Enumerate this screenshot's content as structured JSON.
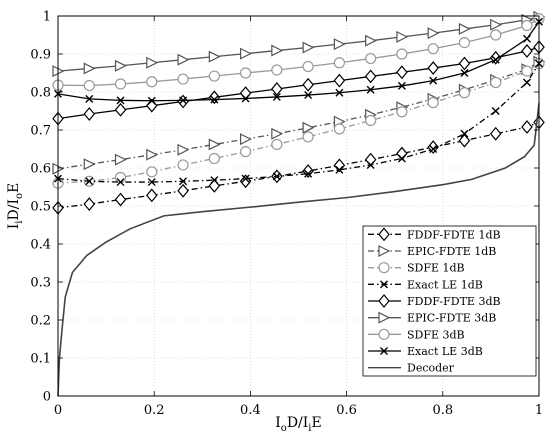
{
  "chart_data": {
    "type": "line",
    "title": "",
    "xlabel_parts": {
      "a": "I",
      "a_sub": "o",
      "b": "D/I",
      "c_sub": "i",
      "d": "E"
    },
    "ylabel_parts": {
      "a": "I",
      "a_sub": "i",
      "b": "D/I",
      "c_sub": "o",
      "d": "E"
    },
    "xlim": [
      0,
      1
    ],
    "ylim": [
      0,
      1
    ],
    "xticks": [
      "0",
      "0.2",
      "0.4",
      "0.6",
      "0.8",
      "1"
    ],
    "yticks": [
      "0",
      "0.1",
      "0.2",
      "0.3",
      "0.4",
      "0.5",
      "0.6",
      "0.7",
      "0.8",
      "0.9",
      "1"
    ],
    "grid": true,
    "legend_position": "bottom-right",
    "series": [
      {
        "name": "FDDF-FDTE 1dB",
        "color": "#000000",
        "dash": "6,3,1.5,3",
        "marker": "diamond",
        "x": [
          0,
          0.065,
          0.13,
          0.195,
          0.26,
          0.325,
          0.39,
          0.455,
          0.52,
          0.585,
          0.65,
          0.715,
          0.78,
          0.845,
          0.91,
          0.975,
          1
        ],
        "y": [
          0.495,
          0.505,
          0.517,
          0.528,
          0.54,
          0.553,
          0.565,
          0.578,
          0.592,
          0.607,
          0.622,
          0.638,
          0.655,
          0.672,
          0.69,
          0.708,
          0.72
        ]
      },
      {
        "name": "EPIC-FDTE 1dB",
        "color": "#555555",
        "dash": "6,3,1.5,3",
        "marker": "triangle-right",
        "x": [
          0,
          0.065,
          0.13,
          0.195,
          0.26,
          0.325,
          0.39,
          0.455,
          0.52,
          0.585,
          0.65,
          0.715,
          0.78,
          0.845,
          0.91,
          0.975,
          1
        ],
        "y": [
          0.598,
          0.61,
          0.622,
          0.635,
          0.648,
          0.662,
          0.676,
          0.69,
          0.706,
          0.722,
          0.74,
          0.76,
          0.782,
          0.806,
          0.832,
          0.86,
          0.88
        ]
      },
      {
        "name": "SDFE 1dB",
        "color": "#999999",
        "dash": "6,3,1.5,3",
        "marker": "circle",
        "x": [
          0,
          0.065,
          0.13,
          0.195,
          0.26,
          0.325,
          0.39,
          0.455,
          0.52,
          0.585,
          0.65,
          0.715,
          0.78,
          0.845,
          0.91,
          0.975,
          1
        ],
        "y": [
          0.56,
          0.565,
          0.575,
          0.59,
          0.608,
          0.625,
          0.643,
          0.662,
          0.682,
          0.703,
          0.725,
          0.748,
          0.772,
          0.798,
          0.825,
          0.855,
          0.875
        ]
      },
      {
        "name": "Exact LE 1dB",
        "color": "#000000",
        "dash": "6,3,1.5,3",
        "marker": "x",
        "x": [
          0,
          0.065,
          0.13,
          0.195,
          0.26,
          0.325,
          0.39,
          0.455,
          0.52,
          0.585,
          0.65,
          0.715,
          0.78,
          0.845,
          0.91,
          0.975,
          1
        ],
        "y": [
          0.572,
          0.565,
          0.563,
          0.563,
          0.565,
          0.568,
          0.572,
          0.578,
          0.585,
          0.595,
          0.608,
          0.625,
          0.65,
          0.69,
          0.75,
          0.825,
          0.875
        ]
      },
      {
        "name": "FDDF-FDTE 3dB",
        "color": "#000000",
        "dash": "",
        "marker": "diamond",
        "x": [
          0,
          0.065,
          0.13,
          0.195,
          0.26,
          0.325,
          0.39,
          0.455,
          0.52,
          0.585,
          0.65,
          0.715,
          0.78,
          0.845,
          0.91,
          0.975,
          1
        ],
        "y": [
          0.73,
          0.742,
          0.753,
          0.764,
          0.775,
          0.786,
          0.797,
          0.808,
          0.819,
          0.83,
          0.841,
          0.852,
          0.863,
          0.875,
          0.89,
          0.908,
          0.918
        ]
      },
      {
        "name": "EPIC-FDTE 3dB",
        "color": "#555555",
        "dash": "",
        "marker": "triangle-right",
        "x": [
          0,
          0.065,
          0.13,
          0.195,
          0.26,
          0.325,
          0.39,
          0.455,
          0.52,
          0.585,
          0.65,
          0.715,
          0.78,
          0.845,
          0.91,
          0.975,
          1
        ],
        "y": [
          0.855,
          0.862,
          0.869,
          0.877,
          0.885,
          0.893,
          0.901,
          0.909,
          0.917,
          0.926,
          0.935,
          0.945,
          0.955,
          0.966,
          0.977,
          0.99,
          0.998
        ]
      },
      {
        "name": "SDFE 3dB",
        "color": "#999999",
        "dash": "",
        "marker": "circle",
        "x": [
          0,
          0.065,
          0.13,
          0.195,
          0.26,
          0.325,
          0.39,
          0.455,
          0.52,
          0.585,
          0.65,
          0.715,
          0.78,
          0.845,
          0.91,
          0.975,
          1
        ],
        "y": [
          0.818,
          0.817,
          0.821,
          0.827,
          0.834,
          0.842,
          0.85,
          0.858,
          0.867,
          0.877,
          0.888,
          0.9,
          0.914,
          0.93,
          0.95,
          0.975,
          0.993
        ]
      },
      {
        "name": "Exact LE 3dB",
        "color": "#000000",
        "dash": "",
        "marker": "x",
        "x": [
          0,
          0.065,
          0.13,
          0.195,
          0.26,
          0.325,
          0.39,
          0.455,
          0.52,
          0.585,
          0.65,
          0.715,
          0.78,
          0.845,
          0.91,
          0.975,
          1
        ],
        "y": [
          0.795,
          0.782,
          0.778,
          0.777,
          0.778,
          0.78,
          0.783,
          0.787,
          0.792,
          0.798,
          0.806,
          0.816,
          0.83,
          0.85,
          0.885,
          0.94,
          0.985
        ]
      },
      {
        "name": "Decoder",
        "color": "#444444",
        "dash": "",
        "marker": "none",
        "x": [
          0,
          0.003,
          0.008,
          0.015,
          0.03,
          0.06,
          0.1,
          0.15,
          0.22,
          0.3,
          0.4,
          0.5,
          0.6,
          0.7,
          0.8,
          0.86,
          0.93,
          0.97,
          0.99,
          1
        ],
        "y": [
          0,
          0.1,
          0.17,
          0.26,
          0.325,
          0.37,
          0.405,
          0.44,
          0.474,
          0.485,
          0.497,
          0.51,
          0.522,
          0.538,
          0.556,
          0.57,
          0.6,
          0.63,
          0.66,
          0.77
        ]
      }
    ]
  }
}
